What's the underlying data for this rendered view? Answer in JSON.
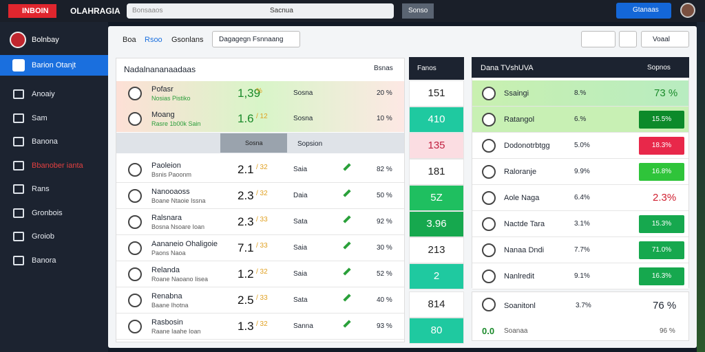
{
  "header": {
    "logo": "INBOIN",
    "brand": "OLAHRAGIA",
    "search": "Bonsaaos",
    "search_hint": "Sacnua",
    "button": "Sonso",
    "primary": "Gtanaas"
  },
  "sidebar": {
    "title": "Bolnbay",
    "active": "Barion Otanjt",
    "items": [
      "Anoaiy",
      "Sam",
      "Banona",
      "Bbanober ianta",
      "Rans",
      "Gronbois",
      "Groiob",
      "Banora"
    ]
  },
  "tabs": [
    "Boa",
    "Rsoo",
    "Gsonlans"
  ],
  "dropdown": "Dagagegn Fsnnaang",
  "filter": "Voaal",
  "table": {
    "title": "Nadalnananaadaas",
    "column": "Bsnas",
    "featured": [
      {
        "name": "Pofasr",
        "sub": "Nosias Pistiko",
        "odds": "1,39",
        "change": "%",
        "label": "Sosna",
        "pct": "20 %"
      },
      {
        "name": "Moang",
        "sub": "Rasre 1b00k Sain",
        "odds": "1.6",
        "change": "/ 12",
        "label": "Sosna",
        "pct": "10 %"
      }
    ],
    "bar": [
      "Sosna",
      "Sopsion"
    ],
    "rows": [
      {
        "name": "Paoleion",
        "sub": "Bsnis Paoonm",
        "odds": "2.1",
        "change": "/ 32",
        "label": "Saia",
        "pct": "82 %"
      },
      {
        "name": "Nanooaoss",
        "sub": "Boane Ntaoie Issna",
        "odds": "2.3",
        "change": "/ 32",
        "label": "Daia",
        "pct": "50 %"
      },
      {
        "name": "Ralsnara",
        "sub": "Bosna Nsoare Ioan",
        "odds": "2.3",
        "change": "/ 33",
        "label": "Sata",
        "pct": "92 %"
      },
      {
        "name": "Aananeio Ohaligoie",
        "sub": "Paons Naoa",
        "odds": "7.1",
        "change": "/ 33",
        "label": "Saia",
        "pct": "30 %"
      },
      {
        "name": "Relanda",
        "sub": "Roane Naoano Iisea",
        "odds": "1.2",
        "change": "/ 32",
        "label": "Saia",
        "pct": "52 %"
      },
      {
        "name": "Renabna",
        "sub": "Baane Ihotna",
        "odds": "2.5",
        "change": "/ 33",
        "label": "Sata",
        "pct": "40 %"
      },
      {
        "name": "Rasbosin",
        "sub": "Raane Iaahe Ioan",
        "odds": "1.3",
        "change": "/ 32",
        "label": "Sanna",
        "pct": "93 %"
      }
    ]
  },
  "middle": {
    "title": "Fanos",
    "values": [
      "151",
      "410",
      "135",
      "181",
      "5Z",
      "3.96",
      "213",
      "2",
      "814",
      "80"
    ]
  },
  "right": {
    "title": "Dana TVshUVA",
    "sort": "Sopnos",
    "rows": [
      {
        "name": "Ssaingi",
        "pct": "8.%",
        "odds": "73 %"
      },
      {
        "name": "Ratangol",
        "pct": "6.%",
        "odds": "15.5%"
      },
      {
        "name": "Dodonotrbtgg",
        "pct": "5.0%",
        "odds": "18.3%"
      },
      {
        "name": "Raloranje",
        "pct": "9.9%",
        "odds": "16.8%"
      },
      {
        "name": "Aole Naga",
        "pct": "6.4%",
        "odds": "2.3%"
      },
      {
        "name": "Nactde Tara",
        "pct": "3.1%",
        "odds": "15.3%"
      },
      {
        "name": "Nanaa Dndi",
        "pct": "7.7%",
        "odds": "71.0%"
      },
      {
        "name": "Nanlredit",
        "pct": "9.1%",
        "odds": "16.3%"
      }
    ],
    "card": {
      "name": "Soanitonl",
      "pct": "3.7%",
      "odds": "76 %",
      "score": "0.0",
      "sub": "Soanaa",
      "pct2": "96 %"
    }
  }
}
